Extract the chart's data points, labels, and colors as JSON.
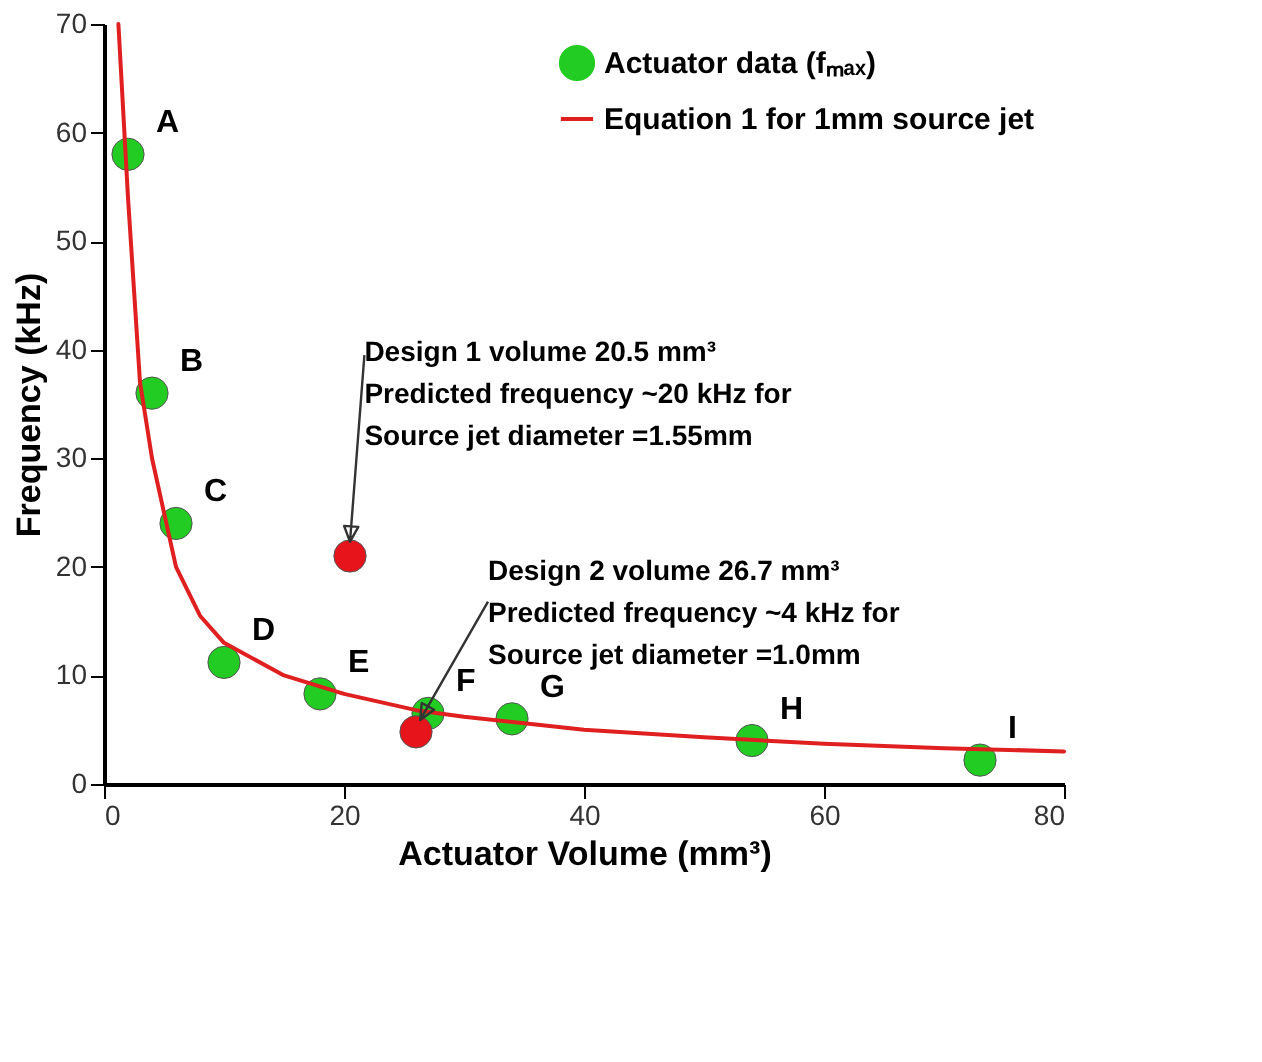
{
  "chart_data": {
    "type": "scatter",
    "xlabel": "Actuator Volume (mm³)",
    "ylabel": "Frequency (kHz)",
    "xlim": [
      0,
      80
    ],
    "ylim": [
      0,
      70
    ],
    "xticks": [
      0,
      20,
      40,
      60,
      80
    ],
    "yticks": [
      0,
      10,
      20,
      30,
      40,
      50,
      60,
      70
    ],
    "grid": false,
    "legend": "top right",
    "series": [
      {
        "name": "Actuator data (fₘₐₓ)",
        "color": "#22cc22",
        "type": "scatter",
        "marker": "circle",
        "x": [
          2,
          4,
          6,
          10,
          18,
          27,
          34,
          54,
          73
        ],
        "values": [
          58,
          36,
          24,
          11.2,
          8.3,
          6.5,
          6,
          4,
          2.2
        ]
      },
      {
        "color": "#e8141c",
        "type": "scatter",
        "marker": "circle",
        "x": [
          20.5,
          26
        ],
        "values": [
          21,
          4.8
        ]
      },
      {
        "name": "Equation 1  for 1mm source jet",
        "color": "#e02020",
        "type": "line",
        "marker": "none",
        "line_style": "solid",
        "x": [
          1.2,
          2,
          3,
          4,
          6,
          8,
          10,
          15,
          20,
          26,
          30,
          40,
          50,
          60,
          70,
          80
        ],
        "values": [
          70,
          54,
          37,
          30,
          20,
          15.5,
          13,
          10,
          8.3,
          6.8,
          6.2,
          5,
          4.3,
          3.7,
          3.3,
          3.0
        ]
      }
    ],
    "annotations": [
      {
        "text": "A",
        "x": 2,
        "y": 58
      },
      {
        "text": "B",
        "x": 4,
        "y": 36
      },
      {
        "text": "C",
        "x": 6,
        "y": 24
      },
      {
        "text": "D",
        "x": 10,
        "y": 11.2
      },
      {
        "text": "E",
        "x": 18,
        "y": 8.3
      },
      {
        "text": "F",
        "x": 27,
        "y": 6.5
      },
      {
        "text": "G",
        "x": 34,
        "y": 6
      },
      {
        "text": "H",
        "x": 54,
        "y": 4
      },
      {
        "text": "I",
        "x": 73,
        "y": 2.2
      },
      {
        "text": "Design 1 volume 20.5 mm³\nPredicted frequency ~20 kHz for\nSource jet  diameter =1.55mm",
        "x": 20.5,
        "y": 21
      },
      {
        "text": "Design 2 volume 26.7 mm³\nPredicted frequency ~4 kHz for\nSource jet diameter =1.0mm",
        "x": 26,
        "y": 4.8
      }
    ]
  }
}
